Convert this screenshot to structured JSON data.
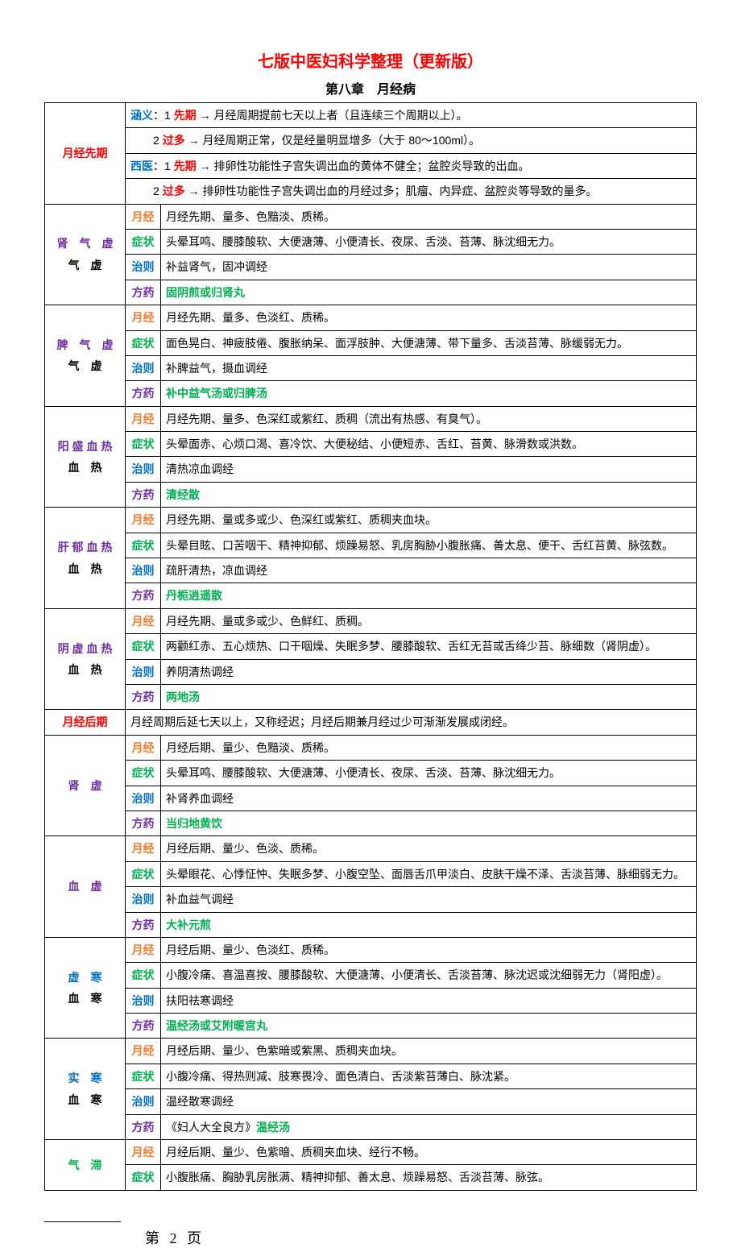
{
  "title": "七版中医妇科学整理（更新版）",
  "chapter": "第八章　月经病",
  "colors": {
    "title_red": "#ff0000",
    "blue": "#0070c0",
    "orange": "#ed7d31",
    "green": "#00b050",
    "purple": "#7030a0",
    "border": "#000000",
    "bg": "#ffffff"
  },
  "labels": {
    "hanyi": "涵义",
    "xiyi": "西医",
    "xianqi": "先期",
    "guoduo": "过多",
    "yuejing": "月经",
    "zhengzhuang": "症状",
    "zhize": "治则",
    "fangyao": "方药"
  },
  "sec1": {
    "category": "月经先期",
    "line1a": "：1 ",
    "line1b": " → 月经周期提前七天以上者（且连续三个周期以上）。",
    "line2a": "　　2 ",
    "line2b": " → 月经周期正常，仅是经量明显增多（大于 80～100ml）。",
    "line3a": "：1 ",
    "line3b": " → 排卵性功能性子宫失调出血的黄体不健全；盆腔炎导致的出血。",
    "line4a": "　　2 ",
    "line4b": " → 排卵性功能性子宫失调出血的月经过多；肌瘤、内异症、盆腔炎等导致的量多。"
  },
  "p1": {
    "cat1": "肾　气　虚",
    "cat2": "气　虚",
    "yj": "月经先期、量多、色黯淡、质稀。",
    "zz": "头晕耳鸣、腰膝酸软、大便溏薄、小便清长、夜尿、舌淡、苔薄、脉沈细无力。",
    "zhi": "补益肾气，固冲调经",
    "fy": "固阴煎或归肾丸"
  },
  "p2": {
    "cat1": "脾　气　虚",
    "cat2": "气　虚",
    "yj": "月经先期、量多、色淡红、质稀。",
    "zz": "面色晃白、神疲肢倦、腹胀纳呆、面浮肢肿、大便溏薄、带下量多、舌淡苔薄、脉缓弱无力。",
    "zhi": "补脾益气，摄血调经",
    "fy": "补中益气汤或归脾汤"
  },
  "p3": {
    "cat1": "阳 盛 血 热",
    "cat2": "血　热",
    "yj": "月经先期、量多、色深红或紫红、质稠（流出有热感、有臭气）。",
    "zz": "头晕面赤、心烦口渴、喜冷饮、大便秘结、小便短赤、舌红、苔黄、脉滑数或洪数。",
    "zhi": "清热凉血调经",
    "fy": "清经散"
  },
  "p4": {
    "cat1": "肝 郁 血 热",
    "cat2": "血　热",
    "yj": "月经先期、量或多或少、色深红或紫红、质稠夹血块。",
    "zz": "头晕目眩、口苦咽干、精神抑郁、烦躁易怒、乳房胸胁小腹胀痛、善太息、便干、舌红苔黄、脉弦数。",
    "zhi": "疏肝清热，凉血调经",
    "fy": "丹栀逍遥散"
  },
  "p5": {
    "cat1": "阴 虚 血 热",
    "cat2": "血　热",
    "yj": "月经先期、量或多或少、色鲜红、质稠。",
    "zz": "两颧红赤、五心烦热、口干咽燥、失眠多梦、腰膝酸软、舌红无苔或舌绛少苔、脉细数（肾阴虚）。",
    "zhi": "养阴清热调经",
    "fy": "两地汤"
  },
  "sec2": {
    "category": "月经后期",
    "desc": "月经周期后延七天以上，又称经迟；月经后期兼月经过少可渐渐发展成闭经。"
  },
  "p6": {
    "cat1": "肾　虚",
    "yj": "月经后期、量少、色黯淡、质稀。",
    "zz": "头晕耳鸣、腰膝酸软、大便溏薄、小便清长、夜尿、舌淡、苔薄、脉沈细无力。",
    "zhi": "补肾养血调经",
    "fy": "当归地黄饮"
  },
  "p7": {
    "cat1": "血　虚",
    "yj": "月经后期、量少、色淡、质稀。",
    "zz": "头晕眼花、心悸怔忡、失眠多梦、小腹空坠、面唇舌爪甲淡白、皮肤干燥不泽、舌淡苔薄、脉细弱无力。",
    "zhi": "补血益气调经",
    "fy": "大补元煎"
  },
  "p8": {
    "cat1": "虚　寒",
    "cat2": "血　寒",
    "yj": "月经后期、量少、色淡红、质稀。",
    "zz": "小腹冷痛、喜温喜按、腰膝酸软、大便溏薄、小便清长、舌淡苔薄、脉沈迟或沈细弱无力（肾阳虚）。",
    "zhi": "扶阳祛寒调经",
    "fy": "温经汤或艾附暖宫丸"
  },
  "p9": {
    "cat1": "实　寒",
    "cat2": "血　寒",
    "yj": "月经后期、量少、色紫暗或紫黑、质稠夹血块。",
    "zz": "小腹冷痛、得热则减、肢寒畏冷、面色清白、舌淡紫苔薄白、脉沈紧。",
    "zhi": "温经散寒调经",
    "fy_pre": "《妇人大全良方》",
    "fy": "温经汤"
  },
  "p10": {
    "cat1": "气　滞",
    "yj": "月经后期、量少、色紫暗、质稠夹血块、经行不畅。",
    "zz": "小腹胀痛、胸胁乳房胀满、精神抑郁、善太息、烦躁易怒、舌淡苔薄、脉弦。"
  },
  "pageNumber": "第 2 页"
}
